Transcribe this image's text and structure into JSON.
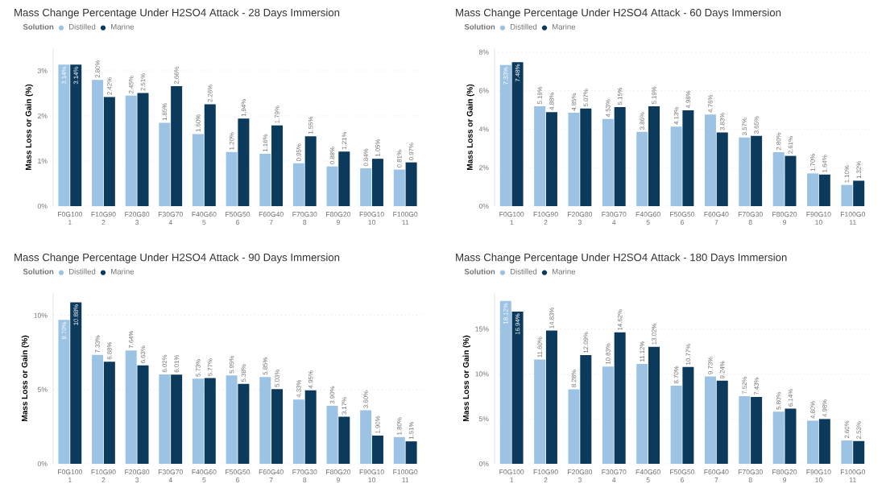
{
  "chart_data": [
    {
      "type": "bar",
      "title": "Mass Change Percentage Under H2SO4 Attack - 28 Days Immersion",
      "legend_title": "Solution",
      "ylabel": "Mass Loss or Gain (%)",
      "categories": [
        "F0G100\n1",
        "F10G90\n2",
        "F20G80\n3",
        "F30G70\n4",
        "F40G60\n5",
        "F50G50\n6",
        "F60G40\n7",
        "F70G30\n8",
        "F80G20\n9",
        "F90G10\n10",
        "F100G0\n11"
      ],
      "series": [
        {
          "name": "Distilled",
          "color": "#9cc3e4",
          "values": [
            3.14,
            2.8,
            2.45,
            1.85,
            1.6,
            1.2,
            1.16,
            0.95,
            0.88,
            0.84,
            0.81
          ],
          "value_labels": [
            "3.14%",
            "2.80%",
            "2.45%",
            "1.85%",
            "1.60%",
            "1.20%",
            "1.16%",
            "0.95%",
            "0.88%",
            "0.84%",
            "0.81%"
          ]
        },
        {
          "name": "Marine",
          "color": "#0c3a5c",
          "values": [
            3.14,
            2.42,
            2.51,
            2.66,
            2.26,
            1.94,
            1.79,
            1.55,
            1.21,
            1.05,
            0.97
          ],
          "value_labels": [
            "3.14%",
            "2.42%",
            "2.51%",
            "2.66%",
            "2.26%",
            "1.94%",
            "1.79%",
            "1.55%",
            "1.21%",
            "1.05%",
            "0.97%"
          ]
        }
      ],
      "ylim": [
        0,
        3.5
      ],
      "yticks": [
        {
          "value": 0,
          "label": "0%"
        },
        {
          "value": 1,
          "label": "1%"
        },
        {
          "value": 2,
          "label": "2%"
        },
        {
          "value": 3,
          "label": "3%"
        }
      ],
      "grid": "y",
      "legend": "top left"
    },
    {
      "type": "bar",
      "title": "Mass Change Percentage Under H2SO4 Attack - 60 Days Immersion",
      "legend_title": "Solution",
      "ylabel": "Mass Loss or Gain (%)",
      "categories": [
        "F0G100\n1",
        "F10G90\n2",
        "F20G80\n3",
        "F30G70\n4",
        "F40G60\n5",
        "F50G50\n6",
        "F60G40\n7",
        "F70G30\n8",
        "F80G20\n9",
        "F90G10\n10",
        "F100G0\n11"
      ],
      "series": [
        {
          "name": "Distilled",
          "color": "#9cc3e4",
          "values": [
            7.33,
            5.19,
            4.85,
            4.53,
            3.86,
            4.13,
            4.76,
            3.57,
            2.8,
            1.7,
            1.1
          ],
          "value_labels": [
            "7.33%",
            "5.19%",
            "4.85%",
            "4.53%",
            "3.86%",
            "4.13%",
            "4.76%",
            "3.57%",
            "2.80%",
            "1.70%",
            "1.10%"
          ]
        },
        {
          "name": "Marine",
          "color": "#0c3a5c",
          "values": [
            7.48,
            4.88,
            5.07,
            5.15,
            5.19,
            4.98,
            3.83,
            3.65,
            2.61,
            1.64,
            1.32
          ],
          "value_labels": [
            "7.48%",
            "4.88%",
            "5.07%",
            "5.15%",
            "5.19%",
            "4.98%",
            "3.83%",
            "3.65%",
            "2.61%",
            "1.64%",
            "1.32%"
          ]
        }
      ],
      "ylim": [
        0,
        8.2
      ],
      "yticks": [
        {
          "value": 0,
          "label": "0%"
        },
        {
          "value": 2,
          "label": "2%"
        },
        {
          "value": 4,
          "label": "4%"
        },
        {
          "value": 6,
          "label": "6%"
        },
        {
          "value": 8,
          "label": "8%"
        }
      ],
      "grid": "y",
      "legend": "top left"
    },
    {
      "type": "bar",
      "title": "Mass Change Percentage Under H2SO4 Attack - 90 Days Immersion",
      "legend_title": "Solution",
      "ylabel": "Mass Loss or Gain (%)",
      "categories": [
        "F0G100\n1",
        "F10G90\n2",
        "F20G80\n3",
        "F30G70\n4",
        "F40G60\n5",
        "F50G50\n6",
        "F60G40\n7",
        "F70G30\n8",
        "F80G20\n9",
        "F90G10\n10",
        "F100G0\n11"
      ],
      "series": [
        {
          "name": "Distilled",
          "color": "#9cc3e4",
          "values": [
            9.7,
            7.33,
            7.64,
            6.02,
            5.73,
            5.95,
            5.85,
            4.33,
            3.9,
            3.6,
            1.8
          ],
          "value_labels": [
            "9.70%",
            "7.33%",
            "7.64%",
            "6.02%",
            "5.73%",
            "5.95%",
            "5.85%",
            "4.33%",
            "3.90%",
            "3.60%",
            "1.80%"
          ]
        },
        {
          "name": "Marine",
          "color": "#0c3a5c",
          "values": [
            10.88,
            6.88,
            6.63,
            6.01,
            5.77,
            5.38,
            5.03,
            4.95,
            3.17,
            1.9,
            1.51
          ],
          "value_labels": [
            "10.88%",
            "6.88%",
            "6.63%",
            "6.01%",
            "5.77%",
            "5.38%",
            "5.03%",
            "4.95%",
            "3.17%",
            "1.90%",
            "1.51%"
          ]
        }
      ],
      "ylim": [
        0,
        11.5
      ],
      "yticks": [
        {
          "value": 0,
          "label": "0%"
        },
        {
          "value": 5,
          "label": "5%"
        },
        {
          "value": 10,
          "label": "10%"
        }
      ],
      "grid": "y",
      "legend": "top left"
    },
    {
      "type": "bar",
      "title": "Mass Change Percentage Under H2SO4 Attack - 180 Days Immersion",
      "legend_title": "Solution",
      "ylabel": "Mass Loss or Gain (%)",
      "categories": [
        "F0G100\n1",
        "F10G90\n2",
        "F20G80\n3",
        "F30G70\n4",
        "F40G60\n5",
        "F50G50\n6",
        "F60G40\n7",
        "F70G30\n8",
        "F80G20\n9",
        "F90G10\n10",
        "F100G0\n11"
      ],
      "series": [
        {
          "name": "Distilled",
          "color": "#9cc3e4",
          "values": [
            18.12,
            11.6,
            8.28,
            10.83,
            11.12,
            8.7,
            9.73,
            7.52,
            5.8,
            4.8,
            2.6
          ],
          "value_labels": [
            "18.12%",
            "11.60%",
            "8.28%",
            "10.83%",
            "11.12%",
            "8.70%",
            "9.73%",
            "7.52%",
            "5.80%",
            "4.80%",
            "2.60%"
          ]
        },
        {
          "name": "Marine",
          "color": "#0c3a5c",
          "values": [
            16.94,
            14.83,
            12.09,
            14.62,
            13.02,
            10.77,
            9.24,
            7.43,
            6.14,
            4.98,
            2.53
          ],
          "value_labels": [
            "16.94%",
            "14.83%",
            "12.09%",
            "14.62%",
            "13.02%",
            "10.77%",
            "9.24%",
            "7.43%",
            "6.14%",
            "4.98%",
            "2.53%"
          ]
        }
      ],
      "ylim": [
        0,
        19
      ],
      "yticks": [
        {
          "value": 0,
          "label": "0%"
        },
        {
          "value": 5,
          "label": "5%"
        },
        {
          "value": 10,
          "label": "10%"
        },
        {
          "value": 15,
          "label": "15%"
        }
      ],
      "grid": "y",
      "legend": "top left"
    }
  ]
}
